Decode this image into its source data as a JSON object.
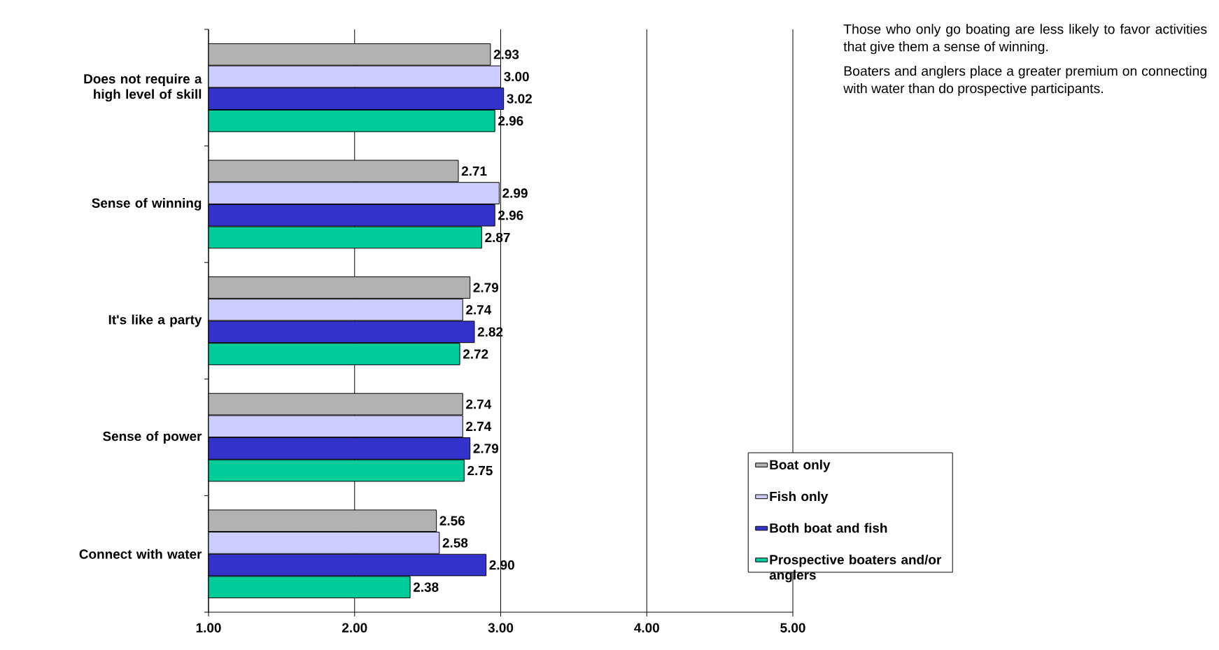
{
  "chart_data": {
    "type": "bar",
    "orientation": "horizontal",
    "categories": [
      "Does not require a high level of skill",
      "Sense of winning",
      "It's like a party",
      "Sense of power",
      "Connect with water"
    ],
    "series": [
      {
        "name": "Boat only",
        "color": "#b2b2b2",
        "values": [
          2.93,
          2.71,
          2.79,
          2.74,
          2.56
        ],
        "value_labels": [
          "2.93",
          "2.71",
          "2.79",
          "2.74",
          "2.56"
        ]
      },
      {
        "name": "Fish only",
        "color": "#ccccff",
        "values": [
          3.0,
          2.99,
          2.74,
          2.74,
          2.58
        ],
        "value_labels": [
          "3.00",
          "2.99",
          "2.74",
          "2.74",
          "2.58"
        ]
      },
      {
        "name": "Both boat and fish",
        "color": "#3333cc",
        "values": [
          3.02,
          2.96,
          2.82,
          2.79,
          2.9
        ],
        "value_labels": [
          "3.02",
          "2.96",
          "2.82",
          "2.79",
          "2.90"
        ]
      },
      {
        "name": "Prospective boaters and/or anglers",
        "color": "#00cc99",
        "values": [
          2.96,
          2.87,
          2.72,
          2.75,
          2.38
        ],
        "value_labels": [
          "2.96",
          "2.87",
          "2.72",
          "2.75",
          "2.38"
        ]
      }
    ],
    "xlim": [
      1,
      5
    ],
    "xticks": [
      {
        "value": 1,
        "label": "1.00"
      },
      {
        "value": 2,
        "label": "2.00"
      },
      {
        "value": 3,
        "label": "3.00"
      },
      {
        "value": 4,
        "label": "4.00"
      },
      {
        "value": 5,
        "label": "5.00"
      }
    ],
    "grid": "x",
    "legend": "right",
    "annotations": [
      "Those who only go boating are less likely to favor activities that give them a sense of winning.",
      "Boaters and anglers place a greater premium on connecting with water than do prospective participants."
    ]
  }
}
